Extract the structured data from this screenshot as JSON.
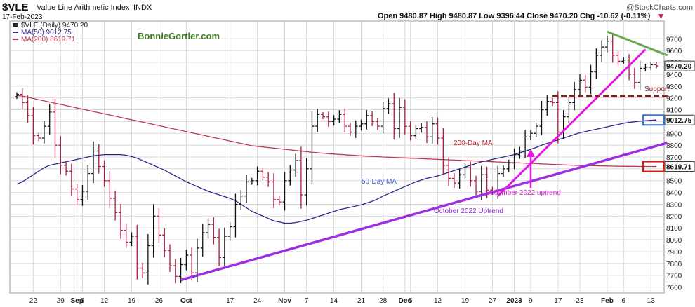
{
  "header": {
    "symbol": "$VLE",
    "name": "Value Line Arithmetic Index",
    "exchange": "INDX",
    "date": "17-Feb-2023",
    "watermark": "@StockCharts.com",
    "ohlc_text": "Open 9480.87  High 9480.87  Low 9396.44  Close 9470.20  Chg -10.62 (-0.11%)",
    "chg_arrow": "▼",
    "author": "BonnieGortler.com"
  },
  "legend": [
    {
      "label": "$VLE (Daily) 9470.20",
      "color": "#222222"
    },
    {
      "label": "MA(50) 9012.75",
      "color": "#2a2a8c"
    },
    {
      "label": "MA(200) 8619.71",
      "color": "#c0394f"
    }
  ],
  "price_labels": {
    "close": "9470.20",
    "ma50": "9012.75",
    "ma200": "8619.71"
  },
  "annotations": {
    "support": "Support",
    "ma200": "200-Day MA",
    "ma50": "50-Day MA",
    "dec_uptrend": "December 2022 uptrend",
    "oct_uptrend": "October 2022 Uptrend"
  },
  "colors": {
    "candle_up": "#111111",
    "candle_down": "#a81c3c",
    "ma50": "#2a2a8c",
    "ma200": "#c0394f",
    "oct_trend": "#9b30e0",
    "dec_trend": "#e01ce0",
    "resistance": "#6aa84f",
    "support": "#8b1a1a",
    "author": "#3a7d20"
  },
  "chart_data": {
    "type": "ohlc",
    "ylim": [
      7550,
      9850
    ],
    "y_ticks": [
      7600,
      7700,
      7800,
      7900,
      8000,
      8100,
      8200,
      8300,
      8400,
      8500,
      8600,
      8700,
      8800,
      8900,
      9000,
      9100,
      9200,
      9300,
      9400,
      9500,
      9600,
      9700
    ],
    "x_ticks": [
      {
        "i": 3,
        "label": "22"
      },
      {
        "i": 8,
        "label": "29"
      },
      {
        "i": 11,
        "label": "Sep"
      },
      {
        "i": 12,
        "label": "6"
      },
      {
        "i": 16,
        "label": "12"
      },
      {
        "i": 21,
        "label": "19"
      },
      {
        "i": 26,
        "label": "26"
      },
      {
        "i": 31,
        "label": "Oct"
      },
      {
        "i": 39,
        "label": "17"
      },
      {
        "i": 44,
        "label": "24"
      },
      {
        "i": 49,
        "label": "Nov"
      },
      {
        "i": 53,
        "label": "7"
      },
      {
        "i": 58,
        "label": "14"
      },
      {
        "i": 63,
        "label": "21"
      },
      {
        "i": 67,
        "label": "28"
      },
      {
        "i": 71,
        "label": "Dec"
      },
      {
        "i": 72,
        "label": "5"
      },
      {
        "i": 77,
        "label": "12"
      },
      {
        "i": 82,
        "label": "19"
      },
      {
        "i": 87,
        "label": "27"
      },
      {
        "i": 91,
        "label": "2023"
      },
      {
        "i": 94,
        "label": "9"
      },
      {
        "i": 99,
        "label": "17"
      },
      {
        "i": 103,
        "label": "23"
      },
      {
        "i": 108,
        "label": "Feb"
      },
      {
        "i": 111,
        "label": "6"
      },
      {
        "i": 116,
        "label": "13"
      }
    ],
    "closes": [
      9230,
      9160,
      9050,
      8880,
      8860,
      8960,
      9080,
      8800,
      8630,
      8580,
      8430,
      8340,
      8410,
      8560,
      8750,
      8620,
      8500,
      8350,
      8230,
      8080,
      7980,
      8030,
      7760,
      7720,
      7950,
      8200,
      8040,
      7910,
      7780,
      7690,
      7790,
      7870,
      7720,
      7930,
      8060,
      8130,
      8020,
      7850,
      8030,
      8110,
      8300,
      8370,
      8490,
      8500,
      8580,
      8530,
      8490,
      8340,
      8320,
      8500,
      8590,
      8670,
      8380,
      8600,
      8960,
      9060,
      9040,
      9000,
      9020,
      9060,
      8960,
      8910,
      8960,
      8980,
      9050,
      9000,
      8960,
      9110,
      9150,
      8940,
      9120,
      8960,
      8880,
      8940,
      8950,
      8870,
      8980,
      8860,
      8630,
      8520,
      8480,
      8550,
      8610,
      8500,
      8410,
      8550,
      8420,
      8410,
      8560,
      8600,
      8650,
      8720,
      8750,
      8870,
      8900,
      8960,
      9100,
      9170,
      9160,
      8910,
      9040,
      9160,
      9270,
      9350,
      9290,
      9420,
      9560,
      9630,
      9680,
      9560,
      9510,
      9520,
      9400,
      9330,
      9450,
      9460,
      9480,
      9470
    ],
    "ma50": [
      8470,
      8490,
      8520,
      8550,
      8580,
      8610,
      8630,
      8640,
      8650,
      8660,
      8670,
      8680,
      8690,
      8700,
      8710,
      8715,
      8720,
      8720,
      8720,
      8720,
      8715,
      8705,
      8690,
      8670,
      8650,
      8630,
      8610,
      8590,
      8565,
      8540,
      8515,
      8490,
      8470,
      8450,
      8430,
      8410,
      8395,
      8380,
      8365,
      8350,
      8330,
      8300,
      8270,
      8240,
      8220,
      8200,
      8180,
      8160,
      8150,
      8140,
      8140,
      8145,
      8155,
      8165,
      8180,
      8195,
      8210,
      8225,
      8240,
      8255,
      8265,
      8275,
      8285,
      8295,
      8310,
      8325,
      8345,
      8370,
      8390,
      8410,
      8430,
      8450,
      8470,
      8490,
      8505,
      8520,
      8530,
      8540,
      8555,
      8570,
      8585,
      8600,
      8615,
      8630,
      8645,
      8660,
      8670,
      8680,
      8690,
      8700,
      8710,
      8720,
      8735,
      8750,
      8765,
      8780,
      8800,
      8815,
      8830,
      8845,
      8860,
      8875,
      8890,
      8905,
      8915,
      8925,
      8935,
      8945,
      8955,
      8965,
      8975,
      8985,
      8992,
      8998,
      9003,
      9007,
      9010,
      9012.75
    ],
    "ma200": [
      9220,
      9215,
      9205,
      9195,
      9185,
      9175,
      9165,
      9155,
      9145,
      9135,
      9125,
      9115,
      9105,
      9095,
      9085,
      9075,
      9065,
      9055,
      9045,
      9035,
      9025,
      9015,
      9005,
      8995,
      8985,
      8975,
      8965,
      8955,
      8945,
      8935,
      8925,
      8915,
      8905,
      8895,
      8885,
      8875,
      8865,
      8855,
      8845,
      8835,
      8825,
      8815,
      8805,
      8795,
      8790,
      8785,
      8780,
      8775,
      8770,
      8765,
      8760,
      8755,
      8750,
      8745,
      8740,
      8736,
      8732,
      8728,
      8725,
      8722,
      8719,
      8716,
      8713,
      8710,
      8707,
      8705,
      8703,
      8700,
      8698,
      8696,
      8694,
      8692,
      8690,
      8688,
      8686,
      8684,
      8682,
      8680,
      8678,
      8676,
      8674,
      8672,
      8670,
      8668,
      8666,
      8664,
      8662,
      8660,
      8658,
      8656,
      8654,
      8652,
      8650,
      8648,
      8646,
      8644,
      8642,
      8640,
      8638,
      8636,
      8634,
      8632,
      8630,
      8629,
      8628,
      8627,
      8626,
      8625,
      8624,
      8623,
      8622,
      8622,
      8621,
      8621,
      8620,
      8620,
      8620,
      8619.71
    ],
    "trendlines": {
      "oct": [
        [
          30,
          7660
        ],
        [
          119,
          8820
        ]
      ],
      "dec": [
        [
          88,
          8370
        ],
        [
          115,
          9610
        ]
      ],
      "resistance": [
        [
          108,
          9760
        ],
        [
          119,
          9560
        ]
      ],
      "support": [
        [
          98,
          9215
        ],
        [
          119,
          9215
        ]
      ]
    }
  }
}
